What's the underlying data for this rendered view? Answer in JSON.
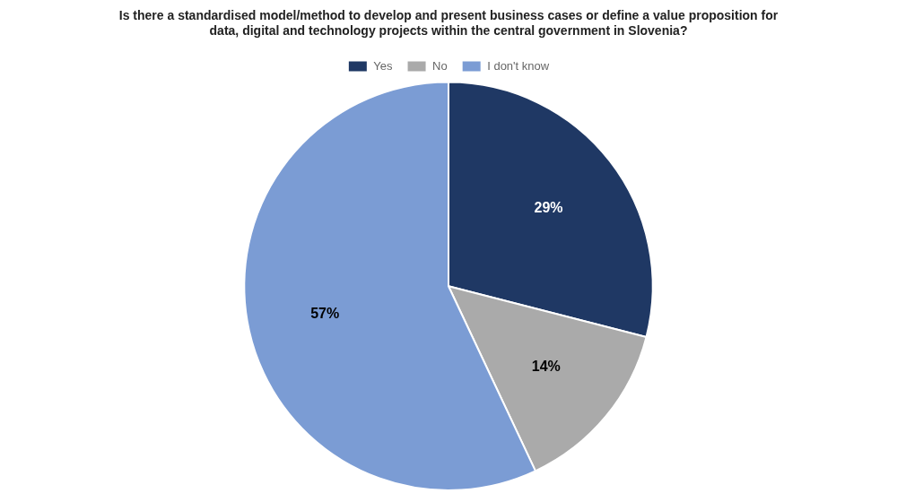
{
  "chart_data": {
    "type": "pie",
    "title": [
      "Is there a standardised model/method to develop and present business cases or define a value proposition for",
      "data, digital and technology projects within the central government in Slovenia?"
    ],
    "categories": [
      "Yes",
      "No",
      "I don't know"
    ],
    "values": [
      29,
      14,
      57
    ],
    "value_labels": [
      "29%",
      "14%",
      "57%"
    ],
    "colors": [
      "#1F3864",
      "#AAAAAA",
      "#7B9CD4"
    ],
    "legend": "top",
    "data_labels": true
  }
}
